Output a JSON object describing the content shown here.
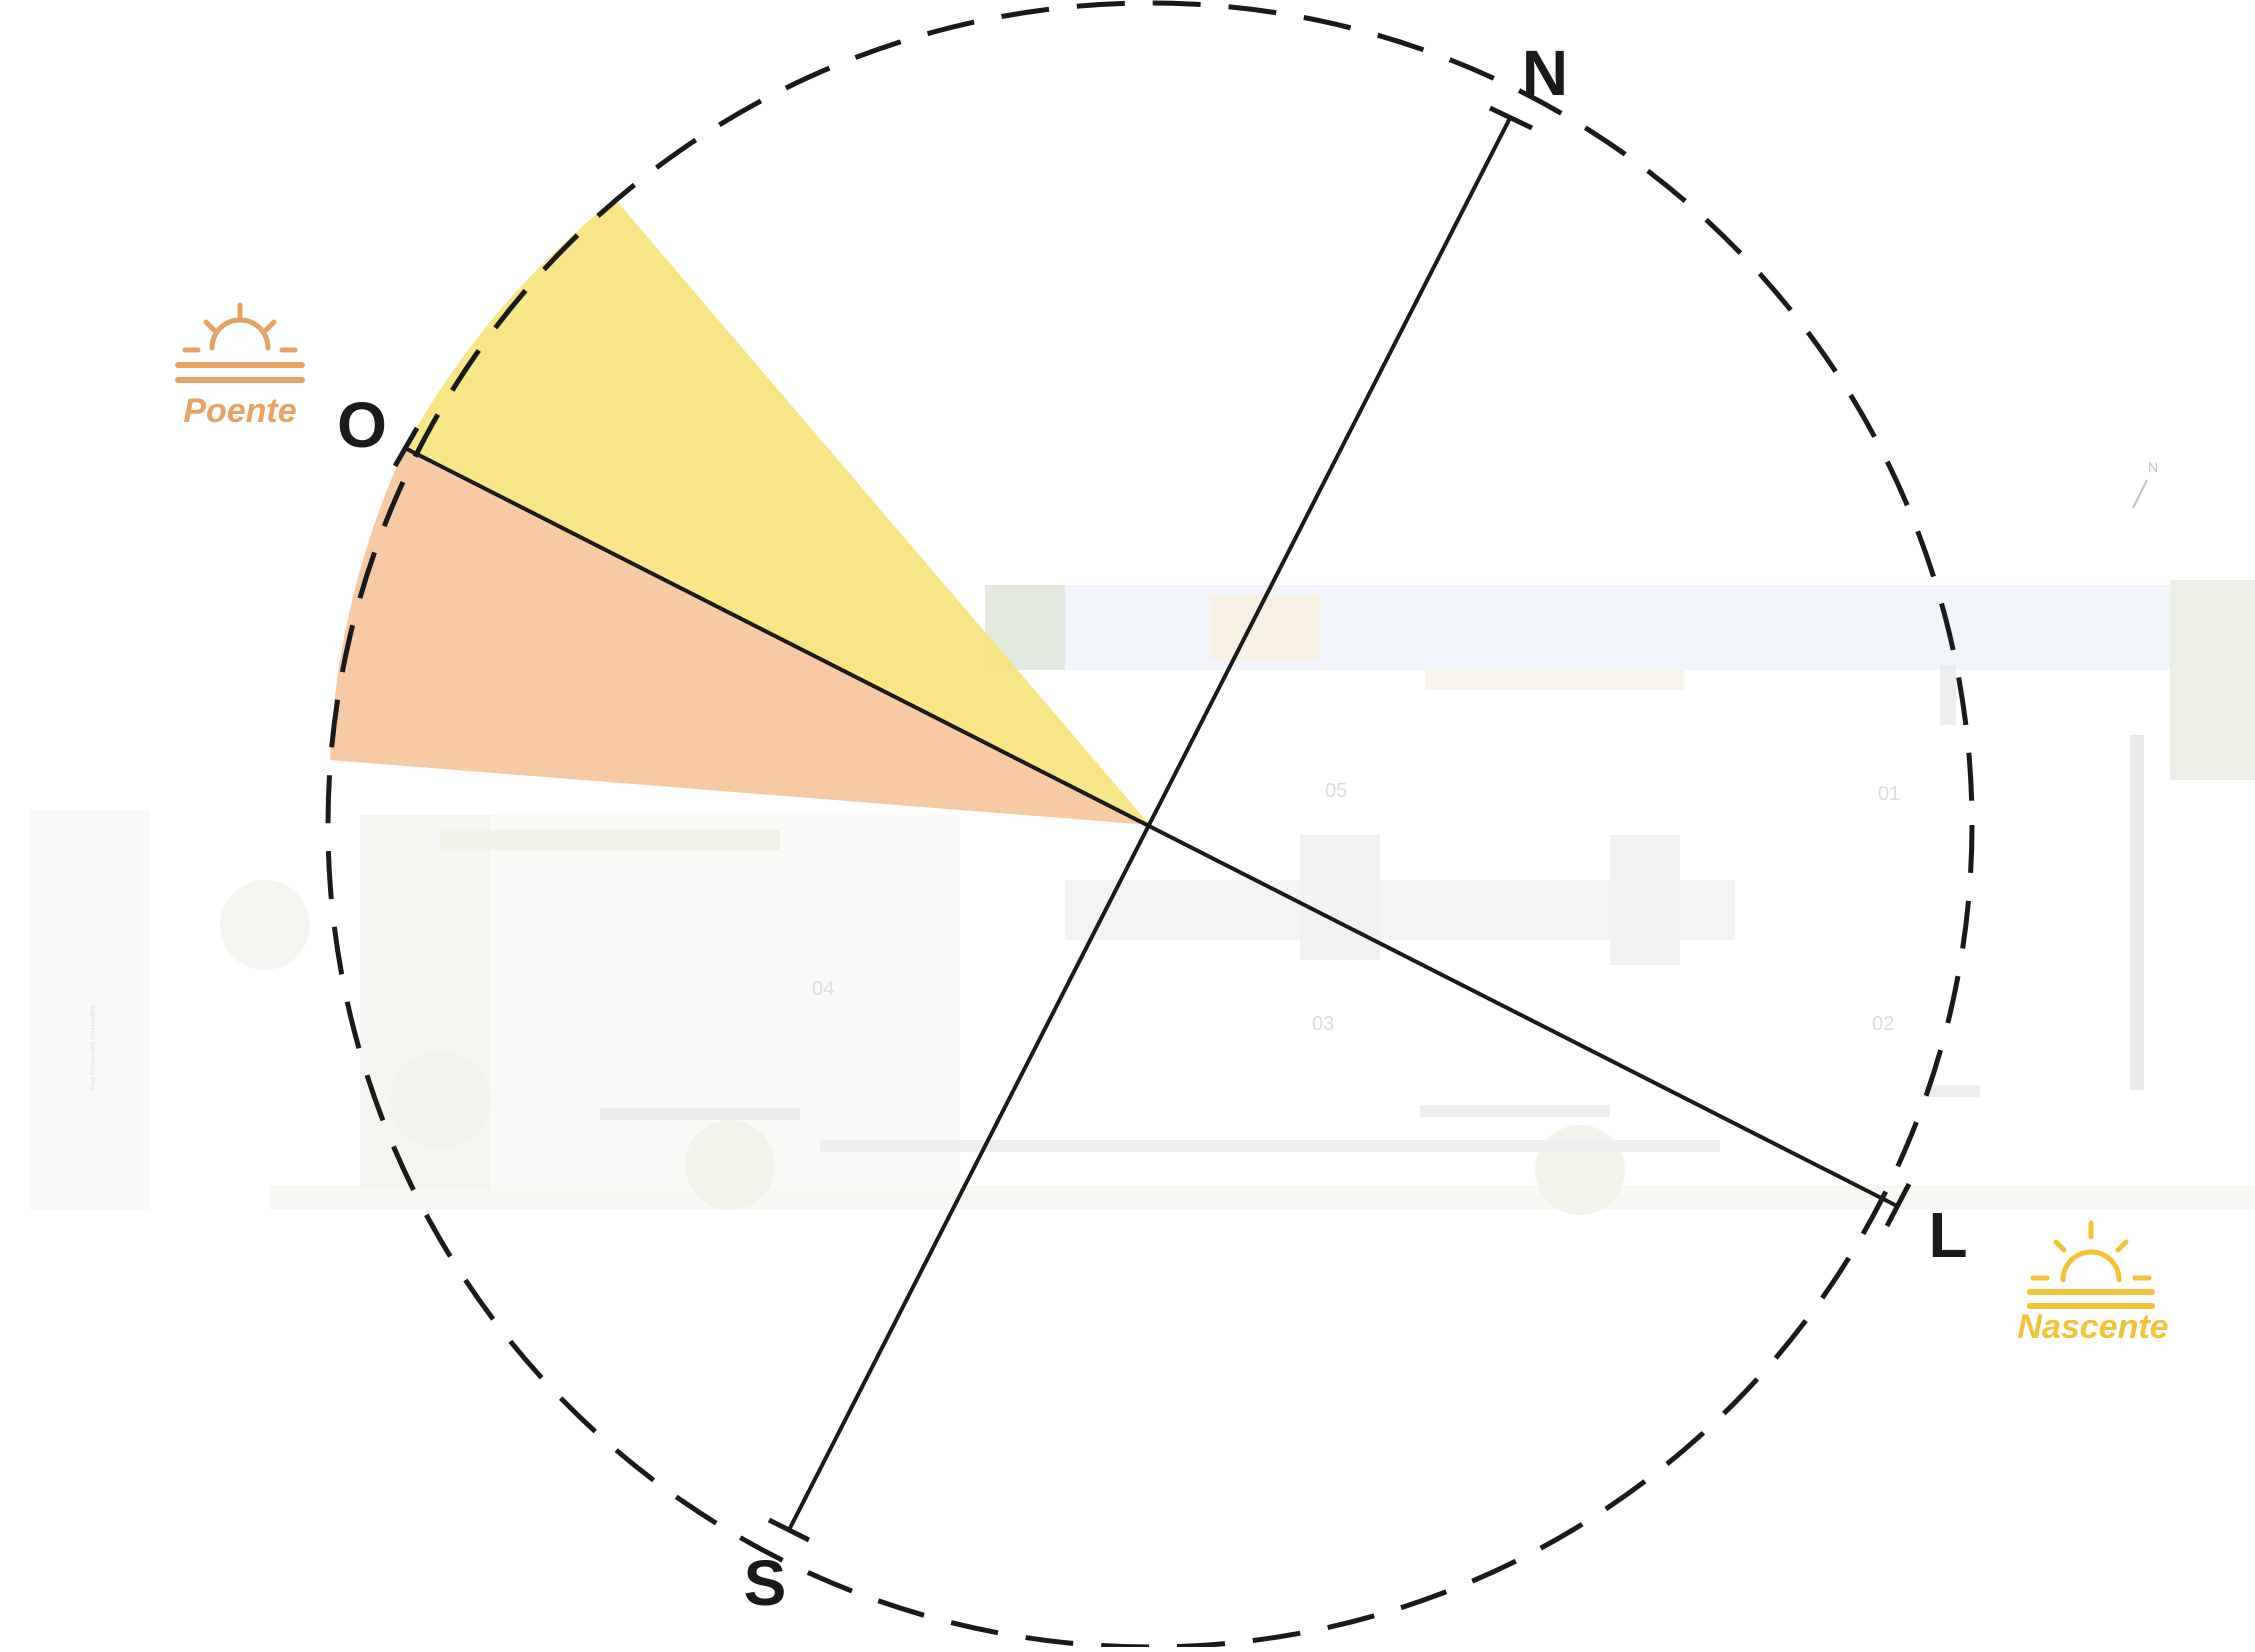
{
  "cardinals": {
    "north": "N",
    "south": "S",
    "east": "L",
    "west": "O"
  },
  "sun": {
    "sunset_label": "Poente",
    "sunrise_label": "Nascente",
    "sunset_color": "#e8a364",
    "sunrise_color": "#f2c23a",
    "sunset_icon": "sunset-icon",
    "sunrise_icon": "sunrise-icon"
  },
  "sectors": {
    "afternoon_sun_color": "#f6e27a",
    "late_sun_color": "#f6c49a"
  },
  "site_plan": {
    "units": [
      "05",
      "01",
      "04",
      "03",
      "02"
    ],
    "street_name": "Rua Fernandes Guimarães",
    "mini_north": "N"
  }
}
